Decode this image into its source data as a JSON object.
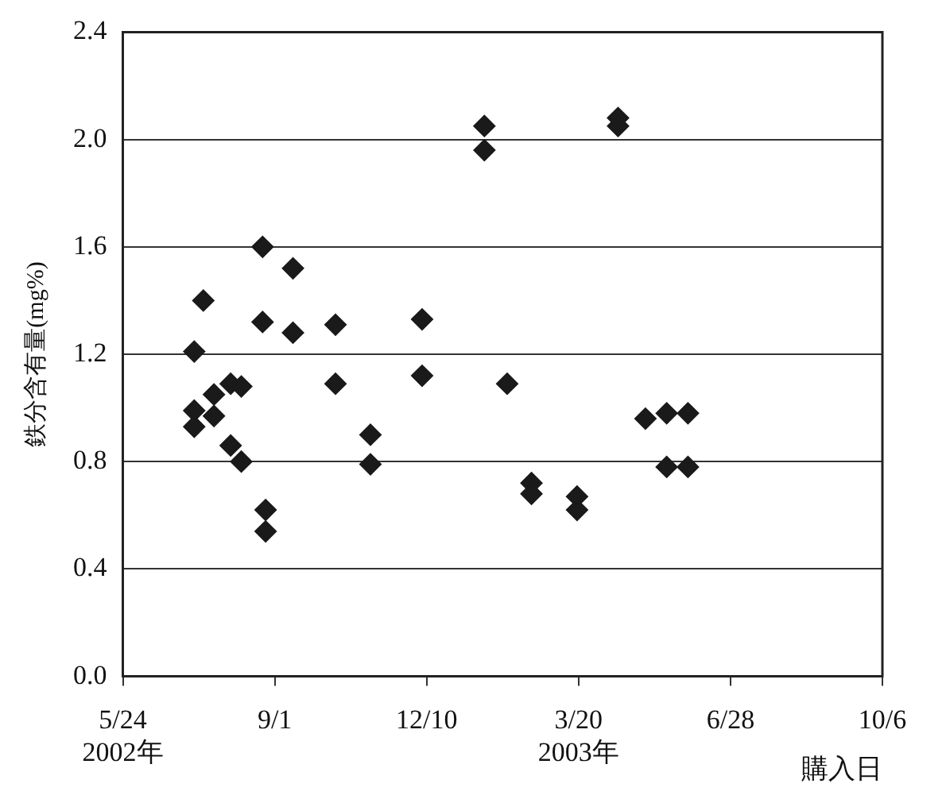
{
  "chart_data": {
    "type": "scatter",
    "xlabel": "購入日",
    "ylabel": "鉄分含有量(mg%)",
    "x": [
      "2002-07-10",
      "2002-07-16",
      "2002-07-10",
      "2002-07-10",
      "2002-07-23",
      "2002-07-23",
      "2002-08-03",
      "2002-08-10",
      "2002-08-03",
      "2002-08-10",
      "2002-08-24",
      "2002-08-24",
      "2002-08-26",
      "2002-08-26",
      "2002-09-13",
      "2002-09-13",
      "2002-10-11",
      "2002-10-11",
      "2002-11-03",
      "2002-11-03",
      "2002-12-07",
      "2002-12-07",
      "2003-01-17",
      "2003-01-17",
      "2003-02-01",
      "2003-02-17",
      "2003-02-17",
      "2003-03-19",
      "2003-03-19",
      "2003-04-15",
      "2003-04-15",
      "2003-05-03",
      "2003-05-17",
      "2003-05-31",
      "2003-05-17",
      "2003-05-31"
    ],
    "values": [
      1.21,
      1.4,
      0.99,
      0.93,
      1.05,
      0.97,
      1.09,
      1.08,
      0.86,
      0.8,
      1.6,
      1.32,
      0.62,
      0.54,
      1.52,
      1.28,
      1.31,
      1.09,
      0.9,
      0.79,
      1.33,
      1.12,
      2.05,
      1.96,
      1.09,
      0.72,
      0.68,
      0.67,
      0.62,
      2.08,
      2.05,
      0.96,
      0.98,
      0.98,
      0.78,
      0.78
    ],
    "color": "#1a1a1a",
    "marker": "diamond",
    "grid": "y",
    "xlim": [
      "2002-05-24",
      "2003-10-06"
    ],
    "xticks": [
      {
        "value": "2002-05-24",
        "label": "5/24\n2002年"
      },
      {
        "value": "2002-09-01",
        "label": "9/1"
      },
      {
        "value": "2002-12-10",
        "label": "12/10"
      },
      {
        "value": "2003-03-20",
        "label": "3/20\n2003年"
      },
      {
        "value": "2003-06-28",
        "label": "6/28"
      },
      {
        "value": "2003-10-06",
        "label": "10/6"
      }
    ],
    "ylim": [
      0,
      2.4
    ],
    "yticks": [
      {
        "value": 0,
        "label": "0.0"
      },
      {
        "value": 0.4,
        "label": "0.4"
      },
      {
        "value": 0.8,
        "label": "0.8"
      },
      {
        "value": 1.2,
        "label": "1.2"
      },
      {
        "value": 1.6,
        "label": "1.6"
      },
      {
        "value": 2,
        "label": "2.0"
      },
      {
        "value": 2.4,
        "label": "2.4"
      }
    ]
  }
}
